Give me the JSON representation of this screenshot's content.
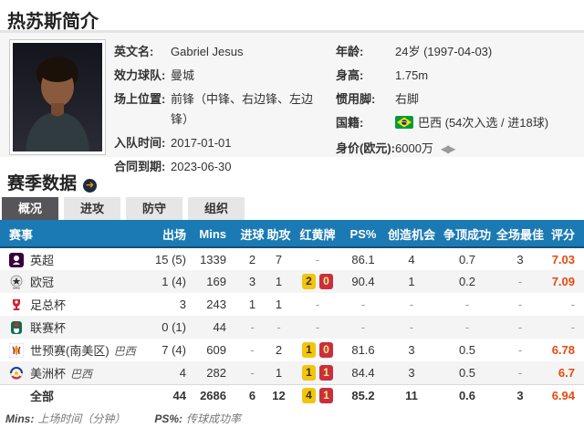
{
  "page": {
    "title": "热苏斯简介"
  },
  "profile": {
    "photo_alt": "player-portrait",
    "left_fields": [
      {
        "label": "英文名:",
        "value": "Gabriel Jesus"
      },
      {
        "label": "效力球队:",
        "value": "曼城"
      },
      {
        "label": "场上位置:",
        "value": "前锋（中锋、右边锋、左边锋）"
      },
      {
        "label": "入队时间:",
        "value": "2017-01-01"
      },
      {
        "label": "合同到期:",
        "value": "2023-06-30"
      }
    ],
    "right_fields": [
      {
        "label": "年龄:",
        "value": "24岁 (1997-04-03)"
      },
      {
        "label": "身高:",
        "value": "1.75m"
      },
      {
        "label": "惯用脚:",
        "value": "右脚"
      },
      {
        "label": "国籍:",
        "value": "巴西 (54次入选 / 进18球)",
        "icon": "brazil-flag-icon"
      },
      {
        "label": "身价(欧元):",
        "value": "6000万",
        "trend_icon": "value-trend-arrows-icon",
        "trend_glyph": "◀▶"
      }
    ]
  },
  "season": {
    "heading": "赛季数据",
    "link_icon": "circle-arrow-icon",
    "link_glyph": "➜",
    "tabs": [
      {
        "label": "概况",
        "active": true
      },
      {
        "label": "进攻",
        "active": false
      },
      {
        "label": "防守",
        "active": false
      },
      {
        "label": "组织",
        "active": false
      }
    ]
  },
  "stats_table": {
    "headers": [
      "赛事",
      "出场",
      "Mins",
      "进球",
      "助攻",
      "红黄牌",
      "PS%",
      "创造机会",
      "争顶成功",
      "全场最佳",
      "评分"
    ],
    "rows": [
      {
        "icon": "premier-league-icon",
        "competition": "英超",
        "team": "",
        "apps": "15 (5)",
        "mins": "1339",
        "goals": "2",
        "assists": "7",
        "yellow": "",
        "red": "",
        "ps": "86.1",
        "chances": "4",
        "aerial": "0.7",
        "motm": "3",
        "rating": "7.03",
        "is_total": false
      },
      {
        "icon": "champions-league-icon",
        "competition": "欧冠",
        "team": "",
        "apps": "1 (4)",
        "mins": "169",
        "goals": "3",
        "assists": "1",
        "yellow": "2",
        "red": "0",
        "ps": "90.4",
        "chances": "1",
        "aerial": "0.2",
        "motm": "-",
        "rating": "7.09",
        "is_total": false
      },
      {
        "icon": "fa-cup-icon",
        "competition": "足总杯",
        "team": "",
        "apps": "3",
        "mins": "243",
        "goals": "1",
        "assists": "1",
        "yellow": "",
        "red": "",
        "ps": "-",
        "chances": "-",
        "aerial": "-",
        "motm": "-",
        "rating": "-",
        "is_total": false
      },
      {
        "icon": "league-cup-icon",
        "competition": "联赛杯",
        "team": "",
        "apps": "0 (1)",
        "mins": "44",
        "goals": "-",
        "assists": "-",
        "yellow": "",
        "red": "",
        "ps": "-",
        "chances": "-",
        "aerial": "-",
        "motm": "-",
        "rating": "-",
        "is_total": false
      },
      {
        "icon": "world-cup-qualifier-icon",
        "competition": "世预赛(南美区)",
        "team": "巴西",
        "apps": "7 (4)",
        "mins": "609",
        "goals": "-",
        "assists": "2",
        "yellow": "1",
        "red": "0",
        "ps": "81.6",
        "chances": "3",
        "aerial": "0.5",
        "motm": "-",
        "rating": "6.78",
        "is_total": false
      },
      {
        "icon": "copa-america-icon",
        "competition": "美洲杯",
        "team": "巴西",
        "apps": "4",
        "mins": "282",
        "goals": "-",
        "assists": "1",
        "yellow": "1",
        "red": "1",
        "ps": "84.4",
        "chances": "3",
        "aerial": "0.5",
        "motm": "-",
        "rating": "6.7",
        "is_total": false
      },
      {
        "icon": "",
        "competition": "全部",
        "team": "",
        "apps": "44",
        "mins": "2686",
        "goals": "6",
        "assists": "12",
        "yellow": "4",
        "red": "1",
        "ps": "85.2",
        "chances": "11",
        "aerial": "0.6",
        "motm": "3",
        "rating": "6.94",
        "is_total": true
      }
    ]
  },
  "footnote": {
    "mins_label": "Mins:",
    "mins_desc": "上场时间（分钟）",
    "ps_label": "PS%:",
    "ps_desc": "传球成功率"
  },
  "colors": {
    "table_header_blue": "#1b7ab3",
    "tab_active_gray": "#55555a",
    "rating_orange": "#e8490c",
    "yellow_card": "#f2c50f",
    "red_card": "#c9303b",
    "panel_bg": "#f6f6f6",
    "row_stripe": "#f4f4f4"
  }
}
